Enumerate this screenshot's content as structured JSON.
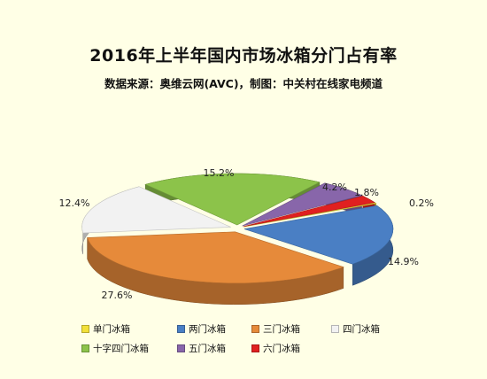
{
  "title": "2016年上半年国内市场冰箱分门占有率",
  "subtitle": "数据来源：奥维云网(AVC)，制图：中关村在线家电频道",
  "chart_data": {
    "type": "pie",
    "title": "2016年上半年国内市场冰箱分门占有率",
    "style": "3d-exploded",
    "legend_position": "bottom",
    "series": [
      {
        "name": "单门冰箱",
        "value": 0.2,
        "label": "0.2%",
        "color": "#f2e03a"
      },
      {
        "name": "两门冰箱",
        "value": 14.9,
        "label": "14.9%",
        "color": "#4a7fc4"
      },
      {
        "name": "三门冰箱",
        "value": 27.6,
        "label": "27.6%",
        "color": "#e68a3a"
      },
      {
        "name": "四门冰箱",
        "value": 12.4,
        "label": "12.4%",
        "color": "#f2f2f2"
      },
      {
        "name": "十字四门冰箱",
        "value": 15.2,
        "label": "15.2%",
        "color": "#8cc34a"
      },
      {
        "name": "五门冰箱",
        "value": 4.2,
        "label": "4.2%",
        "color": "#8866aa"
      },
      {
        "name": "六门冰箱",
        "value": 1.8,
        "label": "1.8%",
        "color": "#e02020"
      }
    ]
  }
}
